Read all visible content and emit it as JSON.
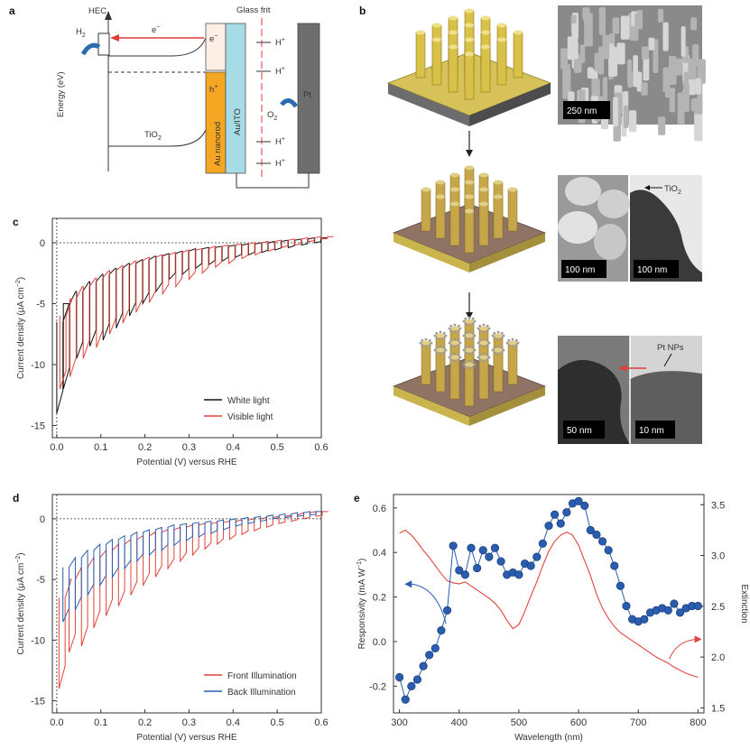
{
  "panel_a": {
    "letter": "a",
    "hec": "HEC",
    "h2": "H",
    "h2_sub": "2",
    "glass_frit": "Glass frit",
    "energy_label": "Energy (eV)",
    "electron": "e",
    "electron_sup": "−",
    "hole": "h",
    "hole_sup": "+",
    "au_nanorod": "Au nanorod",
    "au_ito": "Au/ITO",
    "tio2": "TiO",
    "tio2_sub": "2",
    "pt": "Pt",
    "o2": "O",
    "o2_sub": "2",
    "h_plus": "H",
    "h_plus_sup": "+",
    "colors": {
      "electron_arrow": "#e23b3b",
      "au": "#f5a623",
      "ito": "#a7dce6",
      "pt": "#6e6e6e",
      "water_arrow": "#2b6cb0"
    }
  },
  "panel_b": {
    "letter": "b",
    "scale_bars": [
      "250 nm",
      "100 nm",
      "100 nm",
      "50 nm",
      "10 nm"
    ],
    "tio2_label": "TiO",
    "tio2_sub": "2",
    "pt_nps": "Pt NPs",
    "icons": [
      "nanorod-array-icon",
      "tio2-coated-array-icon",
      "pt-decorated-array-icon",
      "down-arrow-icon"
    ]
  },
  "chart_data": [
    {
      "id": "c",
      "type": "line",
      "letter": "c",
      "xlabel": "Potential (V) versus RHE",
      "ylabel": "Current density (μA cm",
      "ylabel_sup": "−2",
      "ylabel_end": ")",
      "xlim": [
        -0.01,
        0.6
      ],
      "ylim": [
        -16,
        2
      ],
      "xticks": [
        "0.0",
        "0.1",
        "0.2",
        "0.3",
        "0.4",
        "0.5",
        "0.6"
      ],
      "xtick_values": [
        0,
        0.1,
        0.2,
        0.3,
        0.4,
        0.5,
        0.6
      ],
      "yticks": [
        "0",
        "-5",
        "-10",
        "-15"
      ],
      "ytick_values": [
        0,
        -5,
        -10,
        -15
      ],
      "series": [
        {
          "name": "White light",
          "color": "#111111",
          "x": [
            0.0,
            0.015,
            0.045,
            0.075,
            0.105,
            0.135,
            0.165,
            0.195,
            0.225,
            0.255,
            0.285,
            0.315,
            0.345,
            0.375,
            0.405,
            0.435,
            0.465,
            0.495,
            0.525,
            0.555,
            0.585
          ],
          "dark": [
            -6.5,
            -5.0,
            -4.0,
            -3.2,
            -2.6,
            -2.1,
            -1.7,
            -1.4,
            -1.1,
            -0.9,
            -0.7,
            -0.5,
            -0.4,
            -0.3,
            -0.2,
            -0.1,
            0.0,
            0.1,
            0.2,
            0.3,
            0.4
          ],
          "light": [
            -14.0,
            -12.0,
            -9.5,
            -8.5,
            -8.0,
            -7.0,
            -6.0,
            -5.0,
            -4.0,
            -3.0,
            -2.6,
            -2.1,
            -1.8,
            -1.5,
            -1.2,
            -1.0,
            -0.8,
            -0.6,
            -0.4,
            -0.2,
            0.0
          ]
        },
        {
          "name": "Visible light",
          "color": "#e0443c",
          "x": [
            0.007,
            0.03,
            0.06,
            0.09,
            0.12,
            0.15,
            0.18,
            0.21,
            0.24,
            0.27,
            0.3,
            0.33,
            0.36,
            0.39,
            0.42,
            0.45,
            0.48,
            0.51,
            0.54,
            0.57,
            0.6
          ],
          "dark": [
            -6.0,
            -4.6,
            -3.6,
            -2.9,
            -2.3,
            -1.9,
            -1.5,
            -1.2,
            -1.0,
            -0.8,
            -0.6,
            -0.5,
            -0.3,
            -0.2,
            -0.1,
            0.0,
            0.1,
            0.2,
            0.3,
            0.4,
            0.5
          ],
          "light": [
            -12.0,
            -11.0,
            -9.5,
            -8.6,
            -7.5,
            -6.6,
            -5.7,
            -4.9,
            -4.2,
            -3.6,
            -3.0,
            -2.5,
            -2.0,
            -1.7,
            -1.3,
            -1.0,
            -0.7,
            -0.4,
            -0.2,
            0.1,
            0.3
          ]
        }
      ],
      "legend": [
        "White light",
        "Visible light"
      ],
      "legend_position": "bottom-right"
    },
    {
      "id": "d",
      "type": "line",
      "letter": "d",
      "xlabel": "Potential (V) versus RHE",
      "ylabel": "Current density (μA cm",
      "ylabel_sup": "−2",
      "ylabel_end": ")",
      "xlim": [
        -0.01,
        0.6
      ],
      "ylim": [
        -16,
        2
      ],
      "xticks": [
        "0.0",
        "0.1",
        "0.2",
        "0.3",
        "0.4",
        "0.5",
        "0.6"
      ],
      "xtick_values": [
        0,
        0.1,
        0.2,
        0.3,
        0.4,
        0.5,
        0.6
      ],
      "yticks": [
        "0",
        "-5",
        "-10",
        "-15"
      ],
      "ytick_values": [
        0,
        -5,
        -10,
        -15
      ],
      "series": [
        {
          "name": "Front Illumination",
          "color": "#e0443c",
          "x": [
            0.005,
            0.028,
            0.056,
            0.084,
            0.112,
            0.14,
            0.168,
            0.196,
            0.224,
            0.252,
            0.28,
            0.308,
            0.336,
            0.364,
            0.392,
            0.42,
            0.448,
            0.476,
            0.504,
            0.532,
            0.56,
            0.588
          ],
          "dark": [
            -6.5,
            -5.0,
            -4.0,
            -3.2,
            -2.6,
            -2.1,
            -1.7,
            -1.4,
            -1.1,
            -0.9,
            -0.7,
            -0.5,
            -0.4,
            -0.3,
            -0.2,
            -0.1,
            0.0,
            0.1,
            0.2,
            0.3,
            0.5,
            0.6
          ],
          "light": [
            -14.0,
            -11.0,
            -10.5,
            -9.0,
            -8.0,
            -7.2,
            -6.3,
            -5.5,
            -4.8,
            -4.1,
            -3.5,
            -3.0,
            -2.5,
            -2.1,
            -1.7,
            -1.3,
            -1.0,
            -0.7,
            -0.4,
            -0.2,
            0.0,
            0.2
          ]
        },
        {
          "name": "Back Illumination",
          "color": "#2a5db0",
          "x": [
            0.014,
            0.042,
            0.07,
            0.098,
            0.126,
            0.154,
            0.182,
            0.21,
            0.238,
            0.266,
            0.294,
            0.322,
            0.35,
            0.378,
            0.406,
            0.434,
            0.462,
            0.49,
            0.518,
            0.546,
            0.574
          ],
          "dark": [
            -4.0,
            -3.2,
            -2.6,
            -2.1,
            -1.7,
            -1.4,
            -1.1,
            -0.9,
            -0.7,
            -0.5,
            -0.4,
            -0.3,
            -0.2,
            -0.1,
            0.0,
            0.1,
            0.2,
            0.3,
            0.4,
            0.5,
            0.6
          ],
          "light": [
            -8.5,
            -7.5,
            -6.3,
            -5.5,
            -4.8,
            -4.1,
            -3.5,
            -3.0,
            -2.6,
            -2.2,
            -1.8,
            -1.5,
            -1.2,
            -0.9,
            -0.6,
            -0.4,
            -0.2,
            0.0,
            0.1,
            0.2,
            0.3
          ]
        }
      ],
      "legend": [
        "Front Illumination",
        "Back Illumination"
      ],
      "legend_position": "bottom-right"
    },
    {
      "id": "e",
      "type": "line",
      "letter": "e",
      "xlabel": "Wavelength (nm)",
      "ylabel": "Responsivity (mA W",
      "ylabel_sup": "−1",
      "ylabel_end": ")",
      "y2label": "Extinction",
      "xlim": [
        290,
        810
      ],
      "ylim": [
        -0.32,
        0.66
      ],
      "y2lim": [
        1.45,
        3.6
      ],
      "xticks": [
        "300",
        "400",
        "500",
        "600",
        "700",
        "800"
      ],
      "xtick_values": [
        300,
        400,
        500,
        600,
        700,
        800
      ],
      "yticks": [
        "0.6",
        "0.4",
        "0.2",
        "0.0",
        "-0.2"
      ],
      "ytick_values": [
        0.6,
        0.4,
        0.2,
        0.0,
        -0.2
      ],
      "y2ticks": [
        "3.5",
        "3.0",
        "2.5",
        "2.0",
        "1.5"
      ],
      "y2tick_values": [
        3.5,
        3.0,
        2.5,
        2.0,
        1.5
      ],
      "series": [
        {
          "name": "Responsivity",
          "color": "#2a5db0",
          "axis": "left",
          "markers": true,
          "x": [
            300,
            310,
            320,
            330,
            340,
            350,
            360,
            370,
            380,
            390,
            400,
            410,
            420,
            430,
            440,
            450,
            460,
            470,
            480,
            490,
            500,
            510,
            520,
            530,
            540,
            550,
            560,
            570,
            580,
            590,
            600,
            610,
            620,
            630,
            640,
            650,
            660,
            670,
            680,
            690,
            700,
            710,
            720,
            730,
            740,
            750,
            760,
            770,
            780,
            790,
            800
          ],
          "y": [
            -0.16,
            -0.26,
            -0.2,
            -0.17,
            -0.11,
            -0.06,
            -0.03,
            0.05,
            0.14,
            0.43,
            0.32,
            0.3,
            0.42,
            0.33,
            0.41,
            0.38,
            0.42,
            0.36,
            0.3,
            0.31,
            0.3,
            0.35,
            0.34,
            0.38,
            0.44,
            0.52,
            0.57,
            0.53,
            0.58,
            0.62,
            0.63,
            0.61,
            0.5,
            0.48,
            0.45,
            0.41,
            0.34,
            0.25,
            0.16,
            0.1,
            0.09,
            0.1,
            0.13,
            0.14,
            0.15,
            0.14,
            0.17,
            0.13,
            0.15,
            0.16,
            0.16
          ]
        },
        {
          "name": "Extinction",
          "color": "#e0443c",
          "axis": "right",
          "markers": false,
          "x": [
            300,
            310,
            320,
            330,
            340,
            350,
            360,
            370,
            380,
            390,
            400,
            410,
            420,
            430,
            440,
            450,
            460,
            470,
            480,
            490,
            500,
            510,
            520,
            530,
            540,
            550,
            560,
            570,
            580,
            590,
            600,
            610,
            620,
            630,
            640,
            650,
            660,
            670,
            680,
            690,
            700,
            710,
            720,
            730,
            740,
            750,
            760,
            770,
            780,
            790,
            800
          ],
          "y": [
            3.22,
            3.25,
            3.2,
            3.13,
            3.05,
            2.98,
            2.9,
            2.82,
            2.75,
            2.73,
            2.72,
            2.74,
            2.7,
            2.66,
            2.62,
            2.58,
            2.53,
            2.46,
            2.36,
            2.28,
            2.32,
            2.45,
            2.6,
            2.74,
            2.9,
            3.04,
            3.14,
            3.2,
            3.23,
            3.2,
            3.1,
            2.95,
            2.8,
            2.62,
            2.48,
            2.38,
            2.3,
            2.24,
            2.2,
            2.16,
            2.12,
            2.08,
            2.04,
            2.0,
            1.97,
            1.94,
            1.9,
            1.87,
            1.84,
            1.82,
            1.8
          ]
        }
      ]
    }
  ]
}
